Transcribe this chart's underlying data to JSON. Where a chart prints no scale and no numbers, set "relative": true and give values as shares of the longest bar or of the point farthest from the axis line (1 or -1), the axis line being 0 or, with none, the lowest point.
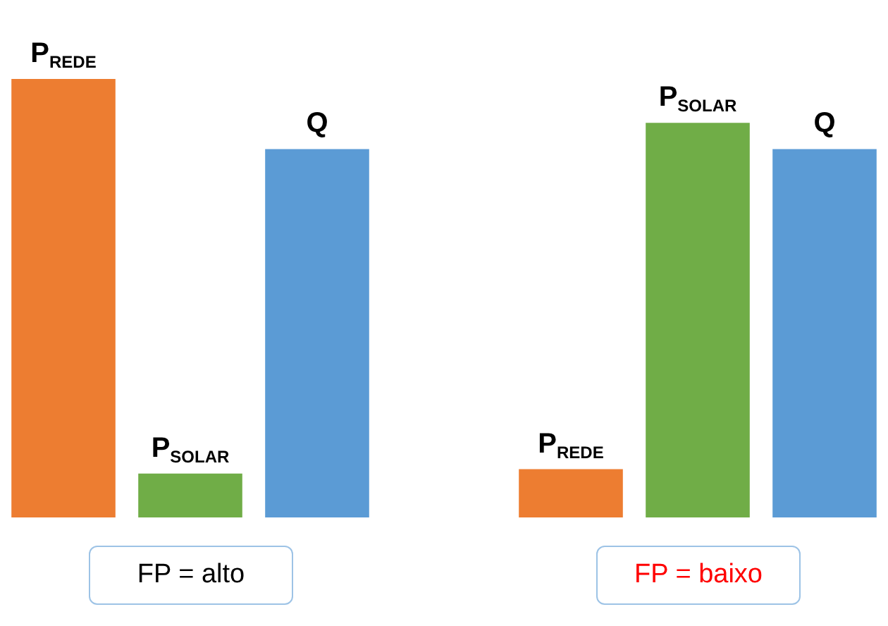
{
  "chart_data": {
    "type": "bar",
    "relative": true,
    "categories": [
      "P$_{REDE}$",
      "P$_{SOLAR}$",
      "Q",
      null,
      "P$_{REDE}$",
      "P$_{SOLAR}$",
      "Q"
    ],
    "values": [
      1,
      0.1,
      0.84,
      null,
      0.11,
      0.9,
      0.84
    ],
    "colors": [
      "#ed7d31",
      "#70ad47",
      "#5b9bd5",
      null,
      "#ed7d31",
      "#70ad47",
      "#5b9bd5"
    ],
    "annotations": [
      "FP = alto",
      "FP = baixo"
    ]
  }
}
